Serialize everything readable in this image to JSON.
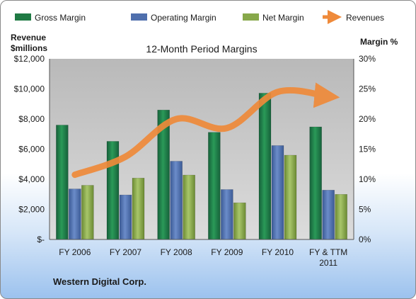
{
  "chart_data": {
    "type": "bar",
    "title": "12-Month Period Margins",
    "ylabel_left": [
      "Revenue",
      "$millions"
    ],
    "ylabel_right": "Margin %",
    "categories": [
      "FY 2006",
      "FY 2007",
      "FY 2008",
      "FY 2009",
      "FY 2010",
      [
        "FY & TTM",
        "2011"
      ]
    ],
    "ylim_left": [
      0,
      12000
    ],
    "ylim_right": [
      0,
      30
    ],
    "left_ticks": [
      "$-",
      "$2,000",
      "$4,000",
      "$6,000",
      "$8,000",
      "$10,000",
      "$12,000"
    ],
    "right_ticks": [
      "0%",
      "5%",
      "10%",
      "15%",
      "20%",
      "25%",
      "30%"
    ],
    "series": [
      {
        "name": "Gross Margin",
        "axis": "right",
        "type": "bar",
        "color": "#1f7a44",
        "values": [
          19,
          16.3,
          21.5,
          17.8,
          24.3,
          18.7
        ]
      },
      {
        "name": "Operating Margin",
        "axis": "right",
        "type": "bar",
        "color": "#4f6fad",
        "values": [
          8.4,
          7.4,
          13,
          8.3,
          15.6,
          8.2
        ]
      },
      {
        "name": "Net Margin",
        "axis": "right",
        "type": "bar",
        "color": "#87a84a",
        "values": [
          9,
          10.2,
          10.7,
          6.1,
          14,
          7.5
        ]
      },
      {
        "name": "Revenues",
        "axis": "left",
        "type": "line",
        "color": "#ef8a3a",
        "values": [
          4300,
          5500,
          8000,
          7400,
          9800,
          9500
        ]
      }
    ],
    "legend_position": "top",
    "grid": false
  },
  "footer": {
    "company": "Western Digital Corp."
  }
}
